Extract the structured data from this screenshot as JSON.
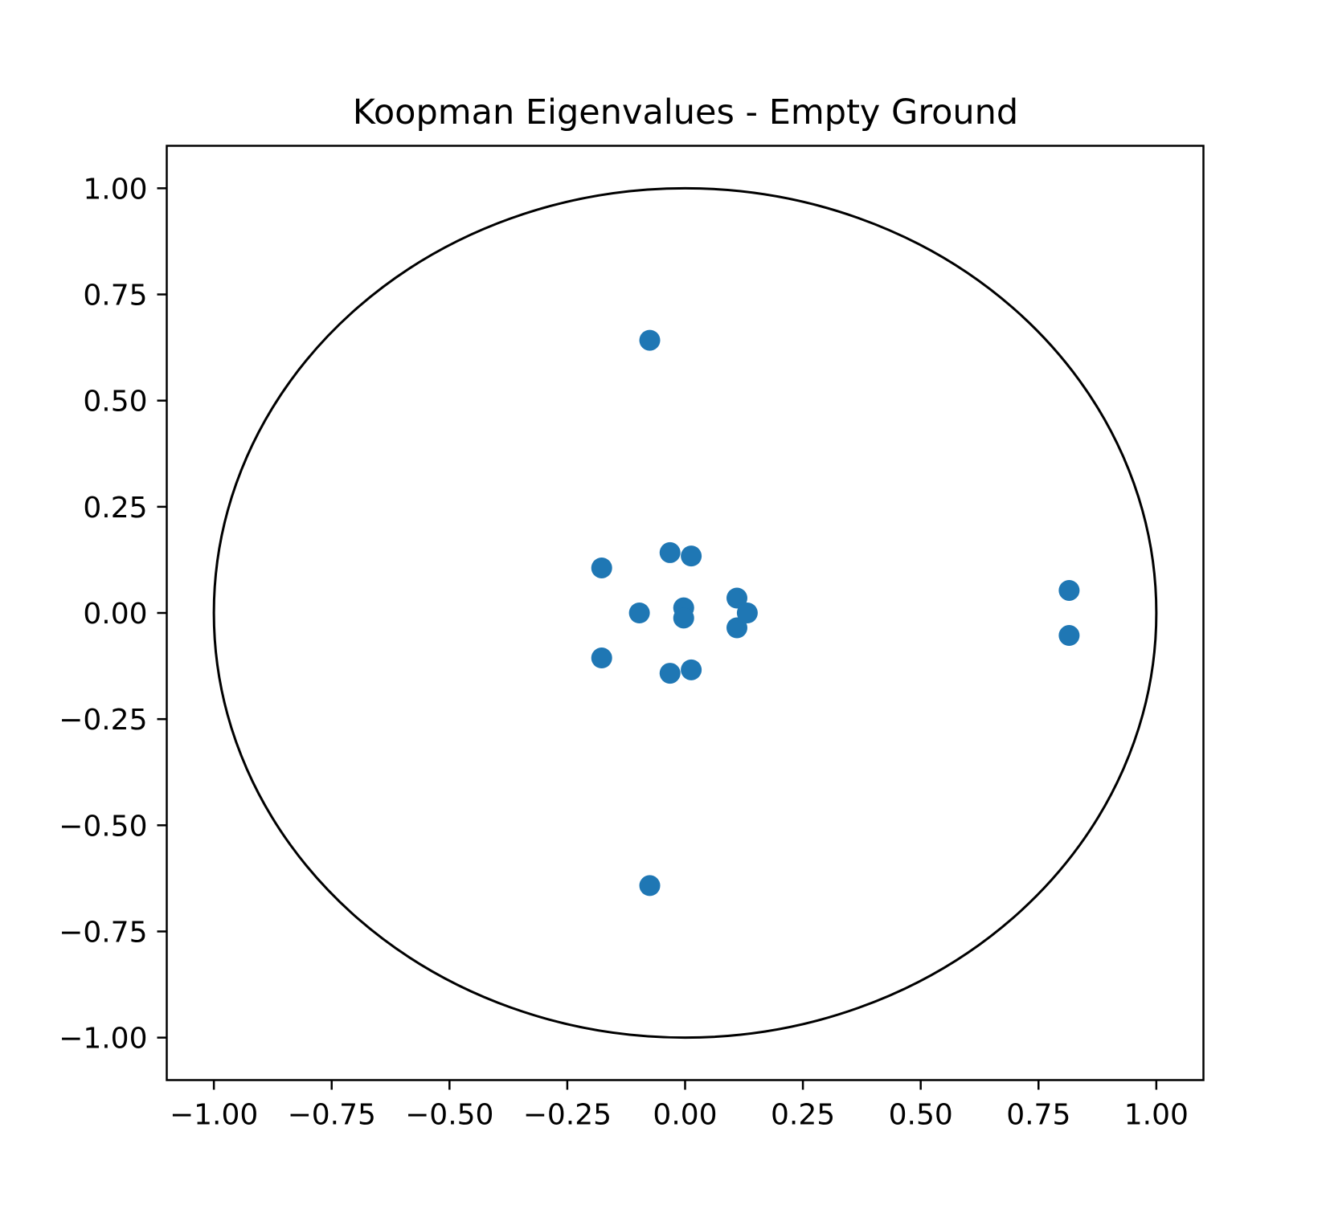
{
  "chart_data": {
    "type": "scatter",
    "title": "Koopman Eigenvalues - Empty Ground",
    "xlabel": "",
    "ylabel": "",
    "xlim": [
      -1.1,
      1.1
    ],
    "ylim": [
      -1.1,
      1.1
    ],
    "grid": false,
    "legend": "none",
    "xticks": [
      -1.0,
      -0.75,
      -0.5,
      -0.25,
      0.0,
      0.25,
      0.5,
      0.75,
      1.0
    ],
    "yticks": [
      -1.0,
      -0.75,
      -0.5,
      -0.25,
      0.0,
      0.25,
      0.5,
      0.75,
      1.0
    ],
    "xtick_labels": [
      "−1.00",
      "−0.75",
      "−0.50",
      "−0.25",
      "0.00",
      "0.25",
      "0.50",
      "0.75",
      "1.00"
    ],
    "ytick_labels": [
      "−1.00",
      "−0.75",
      "−0.50",
      "−0.25",
      "0.00",
      "0.25",
      "0.50",
      "0.75",
      "1.00"
    ],
    "unit_circle": {
      "center": [
        0,
        0
      ],
      "radius": 1.0,
      "color": "#000000"
    },
    "series": [
      {
        "color": "#1f77b4",
        "points": [
          {
            "x": -0.075,
            "y": 0.642
          },
          {
            "x": -0.075,
            "y": -0.642
          },
          {
            "x": -0.177,
            "y": 0.106
          },
          {
            "x": -0.177,
            "y": -0.106
          },
          {
            "x": -0.032,
            "y": 0.142
          },
          {
            "x": -0.032,
            "y": -0.142
          },
          {
            "x": 0.013,
            "y": 0.134
          },
          {
            "x": 0.013,
            "y": -0.134
          },
          {
            "x": -0.097,
            "y": 0.0
          },
          {
            "x": -0.003,
            "y": 0.012
          },
          {
            "x": -0.003,
            "y": -0.012
          },
          {
            "x": 0.11,
            "y": 0.035
          },
          {
            "x": 0.11,
            "y": -0.035
          },
          {
            "x": 0.132,
            "y": 0.0
          },
          {
            "x": 0.815,
            "y": 0.053
          },
          {
            "x": 0.815,
            "y": -0.053
          }
        ]
      }
    ]
  }
}
